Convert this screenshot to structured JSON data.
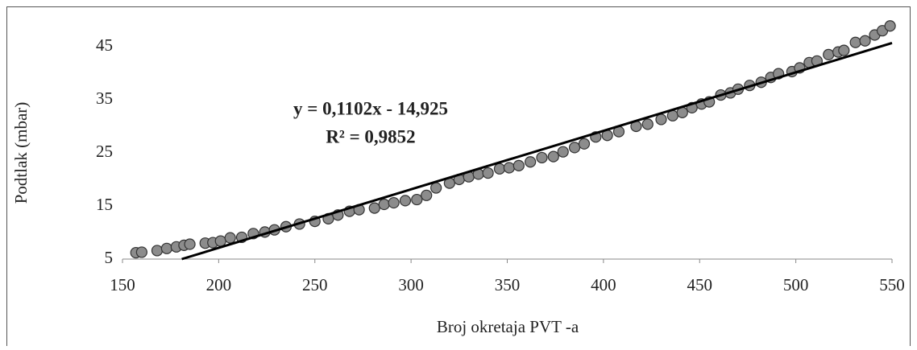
{
  "chart_data": {
    "type": "scatter",
    "xlabel": "Broj okretaja PVT -a",
    "ylabel": "Podtlak (mbar)",
    "x": [
      157,
      160,
      168,
      173,
      178,
      182,
      185,
      193,
      197,
      201,
      206,
      212,
      218,
      224,
      229,
      235,
      242,
      250,
      257,
      262,
      268,
      273,
      281,
      286,
      291,
      297,
      303,
      308,
      313,
      320,
      325,
      330,
      335,
      340,
      346,
      351,
      356,
      362,
      368,
      374,
      379,
      385,
      390,
      396,
      402,
      408,
      417,
      423,
      430,
      436,
      441,
      446,
      451,
      455,
      461,
      466,
      470,
      476,
      482,
      487,
      491,
      498,
      502,
      507,
      511,
      517,
      522,
      525,
      531,
      536,
      541,
      545,
      549
    ],
    "series": [
      {
        "color": "#8c8c8c",
        "values": [
          6.2,
          6.3,
          6.6,
          7.0,
          7.3,
          7.6,
          7.8,
          8.0,
          8.1,
          8.4,
          9.0,
          9.1,
          9.8,
          10.1,
          10.5,
          11.1,
          11.6,
          12.1,
          12.6,
          13.3,
          14.0,
          14.3,
          14.6,
          15.3,
          15.6,
          16.0,
          16.2,
          17.0,
          18.4,
          19.3,
          20.0,
          20.5,
          21.0,
          21.2,
          22.0,
          22.2,
          22.6,
          23.3,
          24.1,
          24.3,
          25.2,
          26.0,
          26.7,
          28.0,
          28.3,
          29.0,
          30.0,
          30.4,
          31.3,
          32.0,
          32.6,
          33.5,
          34.2,
          34.6,
          35.9,
          36.3,
          37.0,
          37.7,
          38.3,
          39.2,
          39.9,
          40.3,
          41.0,
          42.0,
          42.3,
          43.5,
          44.0,
          44.3,
          45.8,
          46.1,
          47.2,
          48.0,
          48.9
        ]
      }
    ],
    "trendline": {
      "slope": 0.1102,
      "intercept": -14.925,
      "label": "y = 0,1102x - 14,925",
      "r2_label": "R² = 0,9852",
      "color": "#000000"
    },
    "xlim": [
      150,
      550
    ],
    "xticks": [
      150,
      200,
      250,
      300,
      350,
      400,
      450,
      500,
      550
    ],
    "ylim": [
      5,
      50
    ],
    "yticks": [
      5,
      15,
      25,
      35,
      45
    ]
  }
}
